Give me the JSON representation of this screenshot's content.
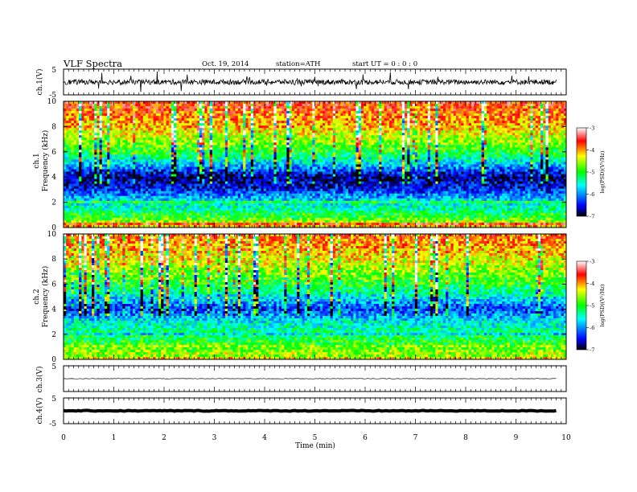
{
  "header": {
    "title": "VLF  Spectra",
    "date": "Oct. 19, 2014",
    "station": "station=ATH",
    "start": "start  UT  =   0  : 0   : 0"
  },
  "chart_data": [
    {
      "type": "line",
      "panel": "ch1",
      "ylabel": "ch.1(V)",
      "ylim": [
        -5,
        5
      ],
      "yticks": [
        "5",
        "-5"
      ],
      "xlim": [
        0,
        9.8
      ],
      "baseline": 0,
      "fluctuation": 1.0
    },
    {
      "type": "heatmap",
      "panel": "spec1",
      "ylabel": "ch.1\nFrequency  (kHz)",
      "ylim": [
        0,
        10
      ],
      "yticks": [
        "0",
        "2",
        "4",
        "6",
        "8",
        "10"
      ],
      "xlim": [
        0,
        9.8
      ],
      "zlabel": "log(PSD)(V²/Hz)",
      "zlim": [
        -7,
        -3
      ],
      "zticks": [
        "-3",
        "-4",
        "-5",
        "-6",
        "-7"
      ],
      "level_profile": [
        {
          "f": 10,
          "z": -3.6
        },
        {
          "f": 8,
          "z": -4.1
        },
        {
          "f": 6,
          "z": -5.0
        },
        {
          "f": 5,
          "z": -5.8
        },
        {
          "f": 4,
          "z": -6.8
        },
        {
          "f": 3,
          "z": -6.4
        },
        {
          "f": 2,
          "z": -5.6
        },
        {
          "f": 1,
          "z": -5.2
        },
        {
          "f": 0,
          "z": -4.0
        }
      ]
    },
    {
      "type": "heatmap",
      "panel": "spec2",
      "ylabel": "ch.2\nFrequency  (kHz)",
      "ylim": [
        0,
        10
      ],
      "yticks": [
        "0",
        "2",
        "4",
        "6",
        "8",
        "10"
      ],
      "xlim": [
        0,
        9.8
      ],
      "zlabel": "log(PSD)(V²/Hz)",
      "zlim": [
        -7,
        -3
      ],
      "zticks": [
        "-3",
        "-4",
        "-5",
        "-6",
        "-7"
      ],
      "level_profile": [
        {
          "f": 10,
          "z": -3.8
        },
        {
          "f": 8,
          "z": -4.3
        },
        {
          "f": 6,
          "z": -5.0
        },
        {
          "f": 5,
          "z": -5.6
        },
        {
          "f": 4,
          "z": -6.3
        },
        {
          "f": 3,
          "z": -5.6
        },
        {
          "f": 2,
          "z": -5.2
        },
        {
          "f": 1,
          "z": -4.9
        },
        {
          "f": 0,
          "z": -4.2
        }
      ]
    },
    {
      "type": "line",
      "panel": "ch3",
      "ylabel": "ch.3(V)",
      "ylim": [
        -5,
        5
      ],
      "yticks": [
        "5"
      ],
      "xlim": [
        0,
        9.8
      ],
      "baseline": 0,
      "fluctuation": 0.1
    },
    {
      "type": "line",
      "panel": "ch4",
      "ylabel": "ch.4(V)",
      "ylim": [
        -5,
        5
      ],
      "yticks": [
        "5",
        "-5"
      ],
      "xlim": [
        0,
        9.8
      ],
      "baseline": 0,
      "fluctuation": 0.15,
      "thick": true
    }
  ],
  "xaxis": {
    "label": "Time  (min)",
    "ticks": [
      "0",
      "1",
      "2",
      "3",
      "4",
      "5",
      "6",
      "7",
      "8",
      "9",
      "10"
    ],
    "xlim": [
      0,
      10
    ]
  },
  "colors": {
    "scale": [
      "#000000",
      "#0000ff",
      "#00ffff",
      "#00ff00",
      "#ffff00",
      "#ff0000",
      "#ffffff"
    ]
  }
}
